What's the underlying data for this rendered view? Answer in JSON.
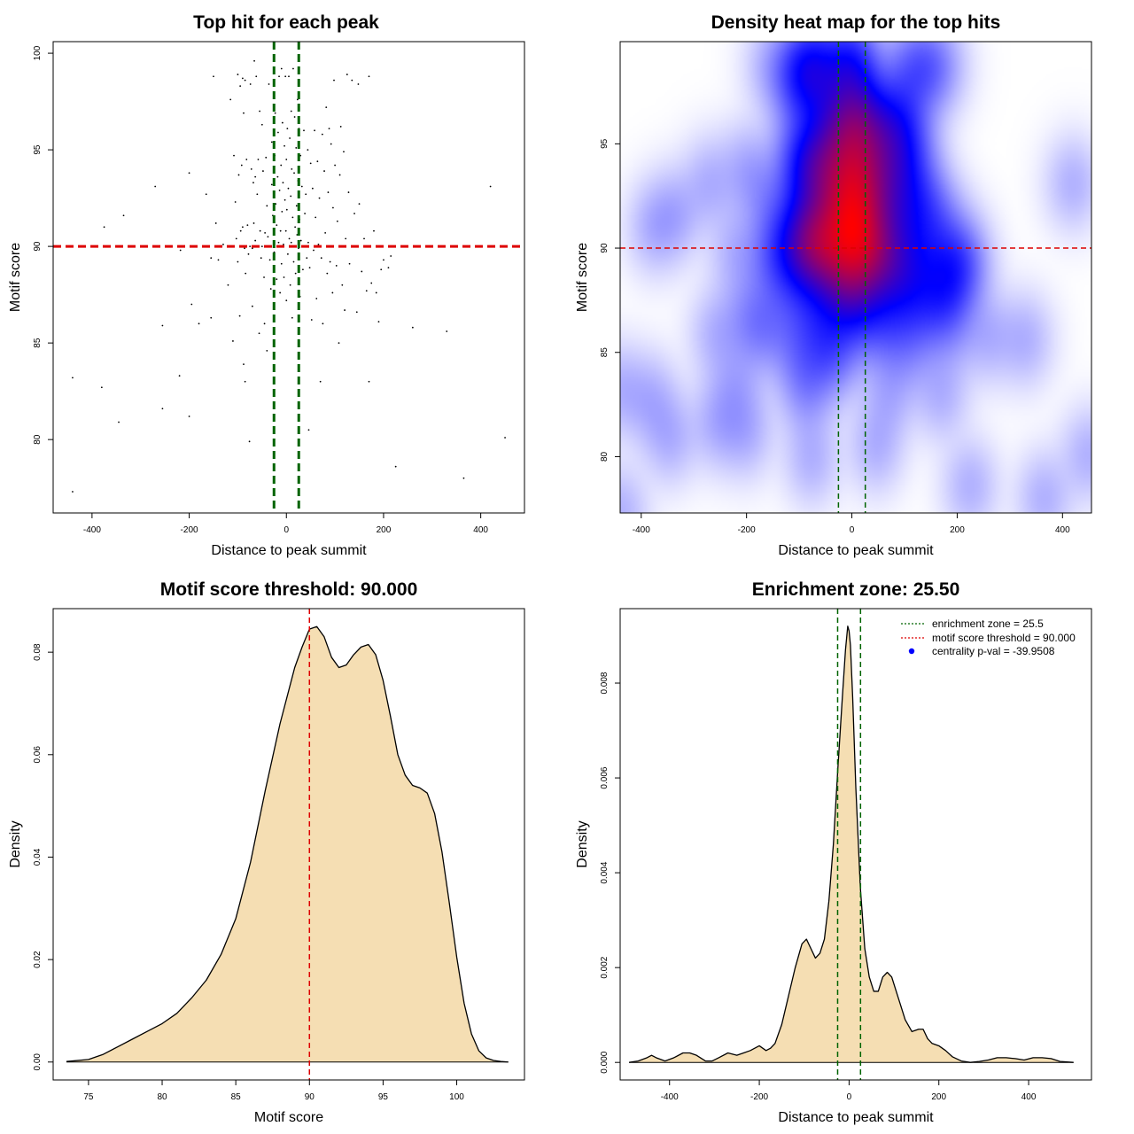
{
  "chart_data": [
    {
      "type": "scatter",
      "title": "Top hit for each peak",
      "xlabel": "Distance to peak summit",
      "ylabel": "Motif score",
      "xlim": [
        -480,
        490
      ],
      "ylim": [
        76.2,
        100.6
      ],
      "xticks": [
        "-400",
        "-200",
        "0",
        "200",
        "400"
      ],
      "xtick_values": [
        -400,
        -200,
        0,
        200,
        400
      ],
      "yticks": [
        "80",
        "85",
        "90",
        "95",
        "100"
      ],
      "ytick_values": [
        80,
        85,
        90,
        95,
        100
      ],
      "threshold": 90,
      "zone": [
        -25.5,
        25.5
      ],
      "threshold_color": "#dd0000",
      "zone_color": "#006400",
      "points": [
        [
          -440,
          77.3
        ],
        [
          -440,
          83.2
        ],
        [
          -380,
          82.7
        ],
        [
          -375,
          91.0
        ],
        [
          -345,
          80.9
        ],
        [
          -335,
          91.6
        ],
        [
          -270,
          93.1
        ],
        [
          -255,
          81.6
        ],
        [
          -255,
          85.9
        ],
        [
          -220,
          83.3
        ],
        [
          -218,
          89.8
        ],
        [
          -200,
          81.2
        ],
        [
          -200,
          93.8
        ],
        [
          -195,
          87.0
        ],
        [
          -180,
          86.0
        ],
        [
          -165,
          92.7
        ],
        [
          -155,
          86.3
        ],
        [
          -155,
          89.4
        ],
        [
          -150,
          98.8
        ],
        [
          -145,
          91.2
        ],
        [
          -140,
          89.3
        ],
        [
          -130,
          90.1
        ],
        [
          -120,
          88.0
        ],
        [
          -115,
          97.6
        ],
        [
          -110,
          85.1
        ],
        [
          -108,
          94.7
        ],
        [
          -105,
          92.3
        ],
        [
          -103,
          90.4
        ],
        [
          -100,
          89.2
        ],
        [
          -100,
          98.9
        ],
        [
          -98,
          93.7
        ],
        [
          -96,
          86.4
        ],
        [
          -95,
          98.3
        ],
        [
          -94,
          90.8
        ],
        [
          -92,
          94.2
        ],
        [
          -90,
          98.7
        ],
        [
          -90,
          91.0
        ],
        [
          -88,
          83.9
        ],
        [
          -88,
          96.9
        ],
        [
          -86,
          89.9
        ],
        [
          -85,
          98.6
        ],
        [
          -85,
          83.0
        ],
        [
          -84,
          88.6
        ],
        [
          -82,
          94.5
        ],
        [
          -80,
          91.1
        ],
        [
          -78,
          89.6
        ],
        [
          -76,
          79.9
        ],
        [
          -75,
          90.0
        ],
        [
          -74,
          98.4
        ],
        [
          -72,
          94.0
        ],
        [
          -70,
          89.9
        ],
        [
          -70,
          86.9
        ],
        [
          -68,
          93.3
        ],
        [
          -67,
          91.2
        ],
        [
          -66,
          99.6
        ],
        [
          -64,
          90.3
        ],
        [
          -64,
          93.6
        ],
        [
          -62,
          98.8
        ],
        [
          -60,
          92.7
        ],
        [
          -58,
          94.5
        ],
        [
          -56,
          85.5
        ],
        [
          -55,
          97.0
        ],
        [
          -54,
          90.8
        ],
        [
          -52,
          89.4
        ],
        [
          -50,
          96.3
        ],
        [
          -50,
          90.0
        ],
        [
          -48,
          93.9
        ],
        [
          -46,
          88.4
        ],
        [
          -45,
          86.0
        ],
        [
          -44,
          90.7
        ],
        [
          -42,
          94.6
        ],
        [
          -40,
          92.1
        ],
        [
          -40,
          84.6
        ],
        [
          -38,
          90.5
        ],
        [
          -36,
          98.4
        ],
        [
          -34,
          89.3
        ],
        [
          -32,
          87.8
        ],
        [
          -30,
          93.2
        ],
        [
          -30,
          95.4
        ],
        [
          -28,
          91.6
        ],
        [
          -26,
          85.0
        ],
        [
          -25,
          89.7
        ],
        [
          -24,
          94.7
        ],
        [
          -23,
          96.9
        ],
        [
          -22,
          92.2
        ],
        [
          -20,
          91.1
        ],
        [
          -20,
          88.3
        ],
        [
          -18,
          93.6
        ],
        [
          -17,
          95.9
        ],
        [
          -16,
          90.2
        ],
        [
          -15,
          98.8
        ],
        [
          -14,
          92.9
        ],
        [
          -13,
          87.6
        ],
        [
          -12,
          90.8
        ],
        [
          -11,
          94.2
        ],
        [
          -10,
          99.2
        ],
        [
          -10,
          89.1
        ],
        [
          -9,
          91.8
        ],
        [
          -8,
          96.4
        ],
        [
          -7,
          93.3
        ],
        [
          -6,
          90.1
        ],
        [
          -5,
          88.4
        ],
        [
          -4,
          95.2
        ],
        [
          -3,
          92.4
        ],
        [
          -2,
          98.8
        ],
        [
          -1,
          90.8
        ],
        [
          0,
          94.5
        ],
        [
          0,
          87.2
        ],
        [
          1,
          91.9
        ],
        [
          2,
          96.1
        ],
        [
          3,
          89.6
        ],
        [
          4,
          93.0
        ],
        [
          5,
          98.8
        ],
        [
          6,
          90.4
        ],
        [
          7,
          95.6
        ],
        [
          8,
          88.0
        ],
        [
          9,
          92.6
        ],
        [
          10,
          97.0
        ],
        [
          10,
          90.2
        ],
        [
          11,
          94.0
        ],
        [
          12,
          86.3
        ],
        [
          13,
          91.5
        ],
        [
          14,
          99.2
        ],
        [
          15,
          89.2
        ],
        [
          16,
          93.8
        ],
        [
          17,
          96.7
        ],
        [
          18,
          91.0
        ],
        [
          19,
          88.6
        ],
        [
          20,
          95.1
        ],
        [
          21,
          92.1
        ],
        [
          22,
          90.6
        ],
        [
          23,
          97.6
        ],
        [
          24,
          93.4
        ],
        [
          25,
          89.9
        ],
        [
          26,
          96.1
        ],
        [
          27,
          91.4
        ],
        [
          28,
          87.4
        ],
        [
          29,
          94.7
        ],
        [
          30,
          90.3
        ],
        [
          32,
          93.1
        ],
        [
          34,
          88.8
        ],
        [
          36,
          96.0
        ],
        [
          38,
          91.7
        ],
        [
          40,
          92.7
        ],
        [
          42,
          89.4
        ],
        [
          44,
          95.0
        ],
        [
          45,
          90.2
        ],
        [
          46,
          80.5
        ],
        [
          48,
          88.9
        ],
        [
          50,
          94.3
        ],
        [
          52,
          86.2
        ],
        [
          54,
          93.0
        ],
        [
          56,
          89.8
        ],
        [
          58,
          96.0
        ],
        [
          60,
          91.5
        ],
        [
          62,
          87.3
        ],
        [
          64,
          94.4
        ],
        [
          66,
          90.1
        ],
        [
          68,
          92.5
        ],
        [
          70,
          83.0
        ],
        [
          72,
          89.4
        ],
        [
          74,
          95.8
        ],
        [
          75,
          86.0
        ],
        [
          78,
          93.9
        ],
        [
          80,
          90.7
        ],
        [
          82,
          97.2
        ],
        [
          84,
          88.6
        ],
        [
          86,
          92.8
        ],
        [
          88,
          96.1
        ],
        [
          90,
          89.2
        ],
        [
          92,
          95.3
        ],
        [
          95,
          87.6
        ],
        [
          96,
          92.0
        ],
        [
          98,
          98.6
        ],
        [
          100,
          94.2
        ],
        [
          103,
          89.0
        ],
        [
          105,
          91.3
        ],
        [
          108,
          85.0
        ],
        [
          110,
          93.7
        ],
        [
          112,
          96.2
        ],
        [
          115,
          88.0
        ],
        [
          118,
          94.9
        ],
        [
          120,
          86.7
        ],
        [
          122,
          90.4
        ],
        [
          125,
          98.9
        ],
        [
          128,
          92.8
        ],
        [
          130,
          89.1
        ],
        [
          135,
          98.6
        ],
        [
          140,
          91.7
        ],
        [
          145,
          86.6
        ],
        [
          148,
          98.4
        ],
        [
          150,
          92.2
        ],
        [
          155,
          88.7
        ],
        [
          160,
          90.4
        ],
        [
          165,
          87.7
        ],
        [
          170,
          83.0
        ],
        [
          170,
          98.8
        ],
        [
          175,
          88.1
        ],
        [
          180,
          90.8
        ],
        [
          185,
          87.6
        ],
        [
          190,
          86.1
        ],
        [
          195,
          88.8
        ],
        [
          200,
          89.3
        ],
        [
          210,
          88.9
        ],
        [
          215,
          89.5
        ],
        [
          225,
          78.6
        ],
        [
          260,
          85.8
        ],
        [
          330,
          85.6
        ],
        [
          365,
          78.0
        ],
        [
          420,
          93.1
        ],
        [
          450,
          80.1
        ]
      ]
    },
    {
      "type": "heatmap",
      "title": "Density heat map for the top hits",
      "xlabel": "Distance to peak summit",
      "ylabel": "Motif score",
      "xlim": [
        -440,
        455
      ],
      "ylim": [
        77.3,
        99.9
      ],
      "xticks": [
        "-400",
        "-200",
        "0",
        "200",
        "400"
      ],
      "xtick_values": [
        -400,
        -200,
        0,
        200,
        400
      ],
      "yticks": [
        "80",
        "85",
        "90",
        "95"
      ],
      "ytick_values": [
        80,
        85,
        90,
        95
      ],
      "threshold": 90,
      "zone": [
        -25.5,
        25.5
      ],
      "colors": [
        "#ffffff",
        "#0000ff",
        "#ff0000"
      ],
      "peak": {
        "x": -3,
        "y": 92.5
      }
    },
    {
      "type": "area",
      "title": "Motif score threshold: 90.000",
      "xlabel": "Motif score",
      "ylabel": "Density",
      "xlim": [
        72.6,
        104.6
      ],
      "ylim": [
        -0.0035,
        0.0885
      ],
      "xticks": [
        "75",
        "80",
        "85",
        "90",
        "95",
        "100"
      ],
      "xtick_values": [
        75,
        80,
        85,
        90,
        95,
        100
      ],
      "yticks": [
        "0.00",
        "0.02",
        "0.04",
        "0.06",
        "0.08"
      ],
      "ytick_values": [
        0,
        0.02,
        0.04,
        0.06,
        0.08
      ],
      "threshold": 90,
      "fill_color": "#f5deb3",
      "threshold_color": "#dd0000",
      "x": [
        73.5,
        75,
        76,
        77,
        78,
        79,
        80,
        81,
        82,
        83,
        84,
        85,
        86,
        87,
        88,
        89,
        89.5,
        90,
        90.5,
        91,
        91.5,
        92,
        92.5,
        93,
        93.5,
        94,
        94.5,
        95,
        95.5,
        96,
        96.5,
        97,
        97.5,
        98,
        98.5,
        99,
        99.5,
        100,
        100.5,
        101,
        101.5,
        102,
        102.5,
        103,
        103.5
      ],
      "y": [
        0.0001,
        0.0005,
        0.0015,
        0.003,
        0.0045,
        0.006,
        0.0075,
        0.0095,
        0.0125,
        0.016,
        0.021,
        0.028,
        0.039,
        0.053,
        0.066,
        0.077,
        0.081,
        0.0845,
        0.085,
        0.083,
        0.079,
        0.077,
        0.0775,
        0.0795,
        0.081,
        0.0815,
        0.0795,
        0.0745,
        0.0675,
        0.06,
        0.056,
        0.054,
        0.0535,
        0.0525,
        0.0485,
        0.041,
        0.031,
        0.0205,
        0.0115,
        0.0055,
        0.0022,
        0.0008,
        0.0003,
        0.0001,
        0.0
      ]
    },
    {
      "type": "area",
      "title": "Enrichment zone: 25.50",
      "xlabel": "Distance to peak summit",
      "ylabel": "Density",
      "xlim": [
        -510,
        540
      ],
      "ylim": [
        -0.00037,
        0.00957
      ],
      "xticks": [
        "-400",
        "-200",
        "0",
        "200",
        "400"
      ],
      "xtick_values": [
        -400,
        -200,
        0,
        200,
        400
      ],
      "yticks": [
        "0.000",
        "0.002",
        "0.004",
        "0.006",
        "0.008"
      ],
      "ytick_values": [
        0,
        0.002,
        0.004,
        0.006,
        0.008
      ],
      "zone": [
        -25.5,
        25.5
      ],
      "fill_color": "#f5deb3",
      "zone_color": "#006400",
      "threshold_color": "#dd0000",
      "legend_position": "top-right",
      "legend": [
        {
          "label": "enrichment zone = 25.5",
          "style": "dotted",
          "color": "#006400"
        },
        {
          "label": "motif score threshold = 90.000",
          "style": "dotted",
          "color": "#dd0000"
        },
        {
          "label": "centrality p-val = -39.9508",
          "style": "dot",
          "color": "#0000ff"
        }
      ],
      "x": [
        -490,
        -470,
        -450,
        -440,
        -430,
        -410,
        -390,
        -370,
        -355,
        -340,
        -320,
        -305,
        -290,
        -270,
        -250,
        -235,
        -220,
        -200,
        -185,
        -175,
        -165,
        -150,
        -135,
        -120,
        -105,
        -95,
        -85,
        -75,
        -65,
        -55,
        -45,
        -35,
        -25,
        -15,
        -8,
        -3,
        0,
        3,
        8,
        15,
        25,
        35,
        45,
        55,
        65,
        75,
        85,
        95,
        105,
        115,
        125,
        140,
        155,
        165,
        175,
        185,
        200,
        215,
        230,
        250,
        270,
        290,
        310,
        330,
        350,
        370,
        390,
        410,
        430,
        450,
        470,
        500
      ],
      "y": [
        0.0,
        3e-05,
        0.0001,
        0.00015,
        0.0001,
        3e-05,
        0.0001,
        0.0002,
        0.0002,
        0.00015,
        3e-05,
        3e-05,
        0.0001,
        0.0002,
        0.00015,
        0.0002,
        0.00025,
        0.00035,
        0.00025,
        0.0003,
        0.0004,
        0.0008,
        0.0014,
        0.002,
        0.0025,
        0.0026,
        0.0024,
        0.0022,
        0.0023,
        0.0026,
        0.0034,
        0.0046,
        0.0062,
        0.0077,
        0.0087,
        0.0092,
        0.0091,
        0.0088,
        0.0077,
        0.0058,
        0.0037,
        0.0024,
        0.0018,
        0.0015,
        0.0015,
        0.0018,
        0.0019,
        0.0018,
        0.0015,
        0.0012,
        0.0009,
        0.00065,
        0.0007,
        0.0007,
        0.0005,
        0.0004,
        0.00035,
        0.00025,
        0.00012,
        3e-05,
        0.0,
        2e-05,
        5e-05,
        0.0001,
        0.0001,
        8e-05,
        5e-05,
        0.0001,
        0.0001,
        8e-05,
        2e-05,
        0.0
      ]
    }
  ]
}
